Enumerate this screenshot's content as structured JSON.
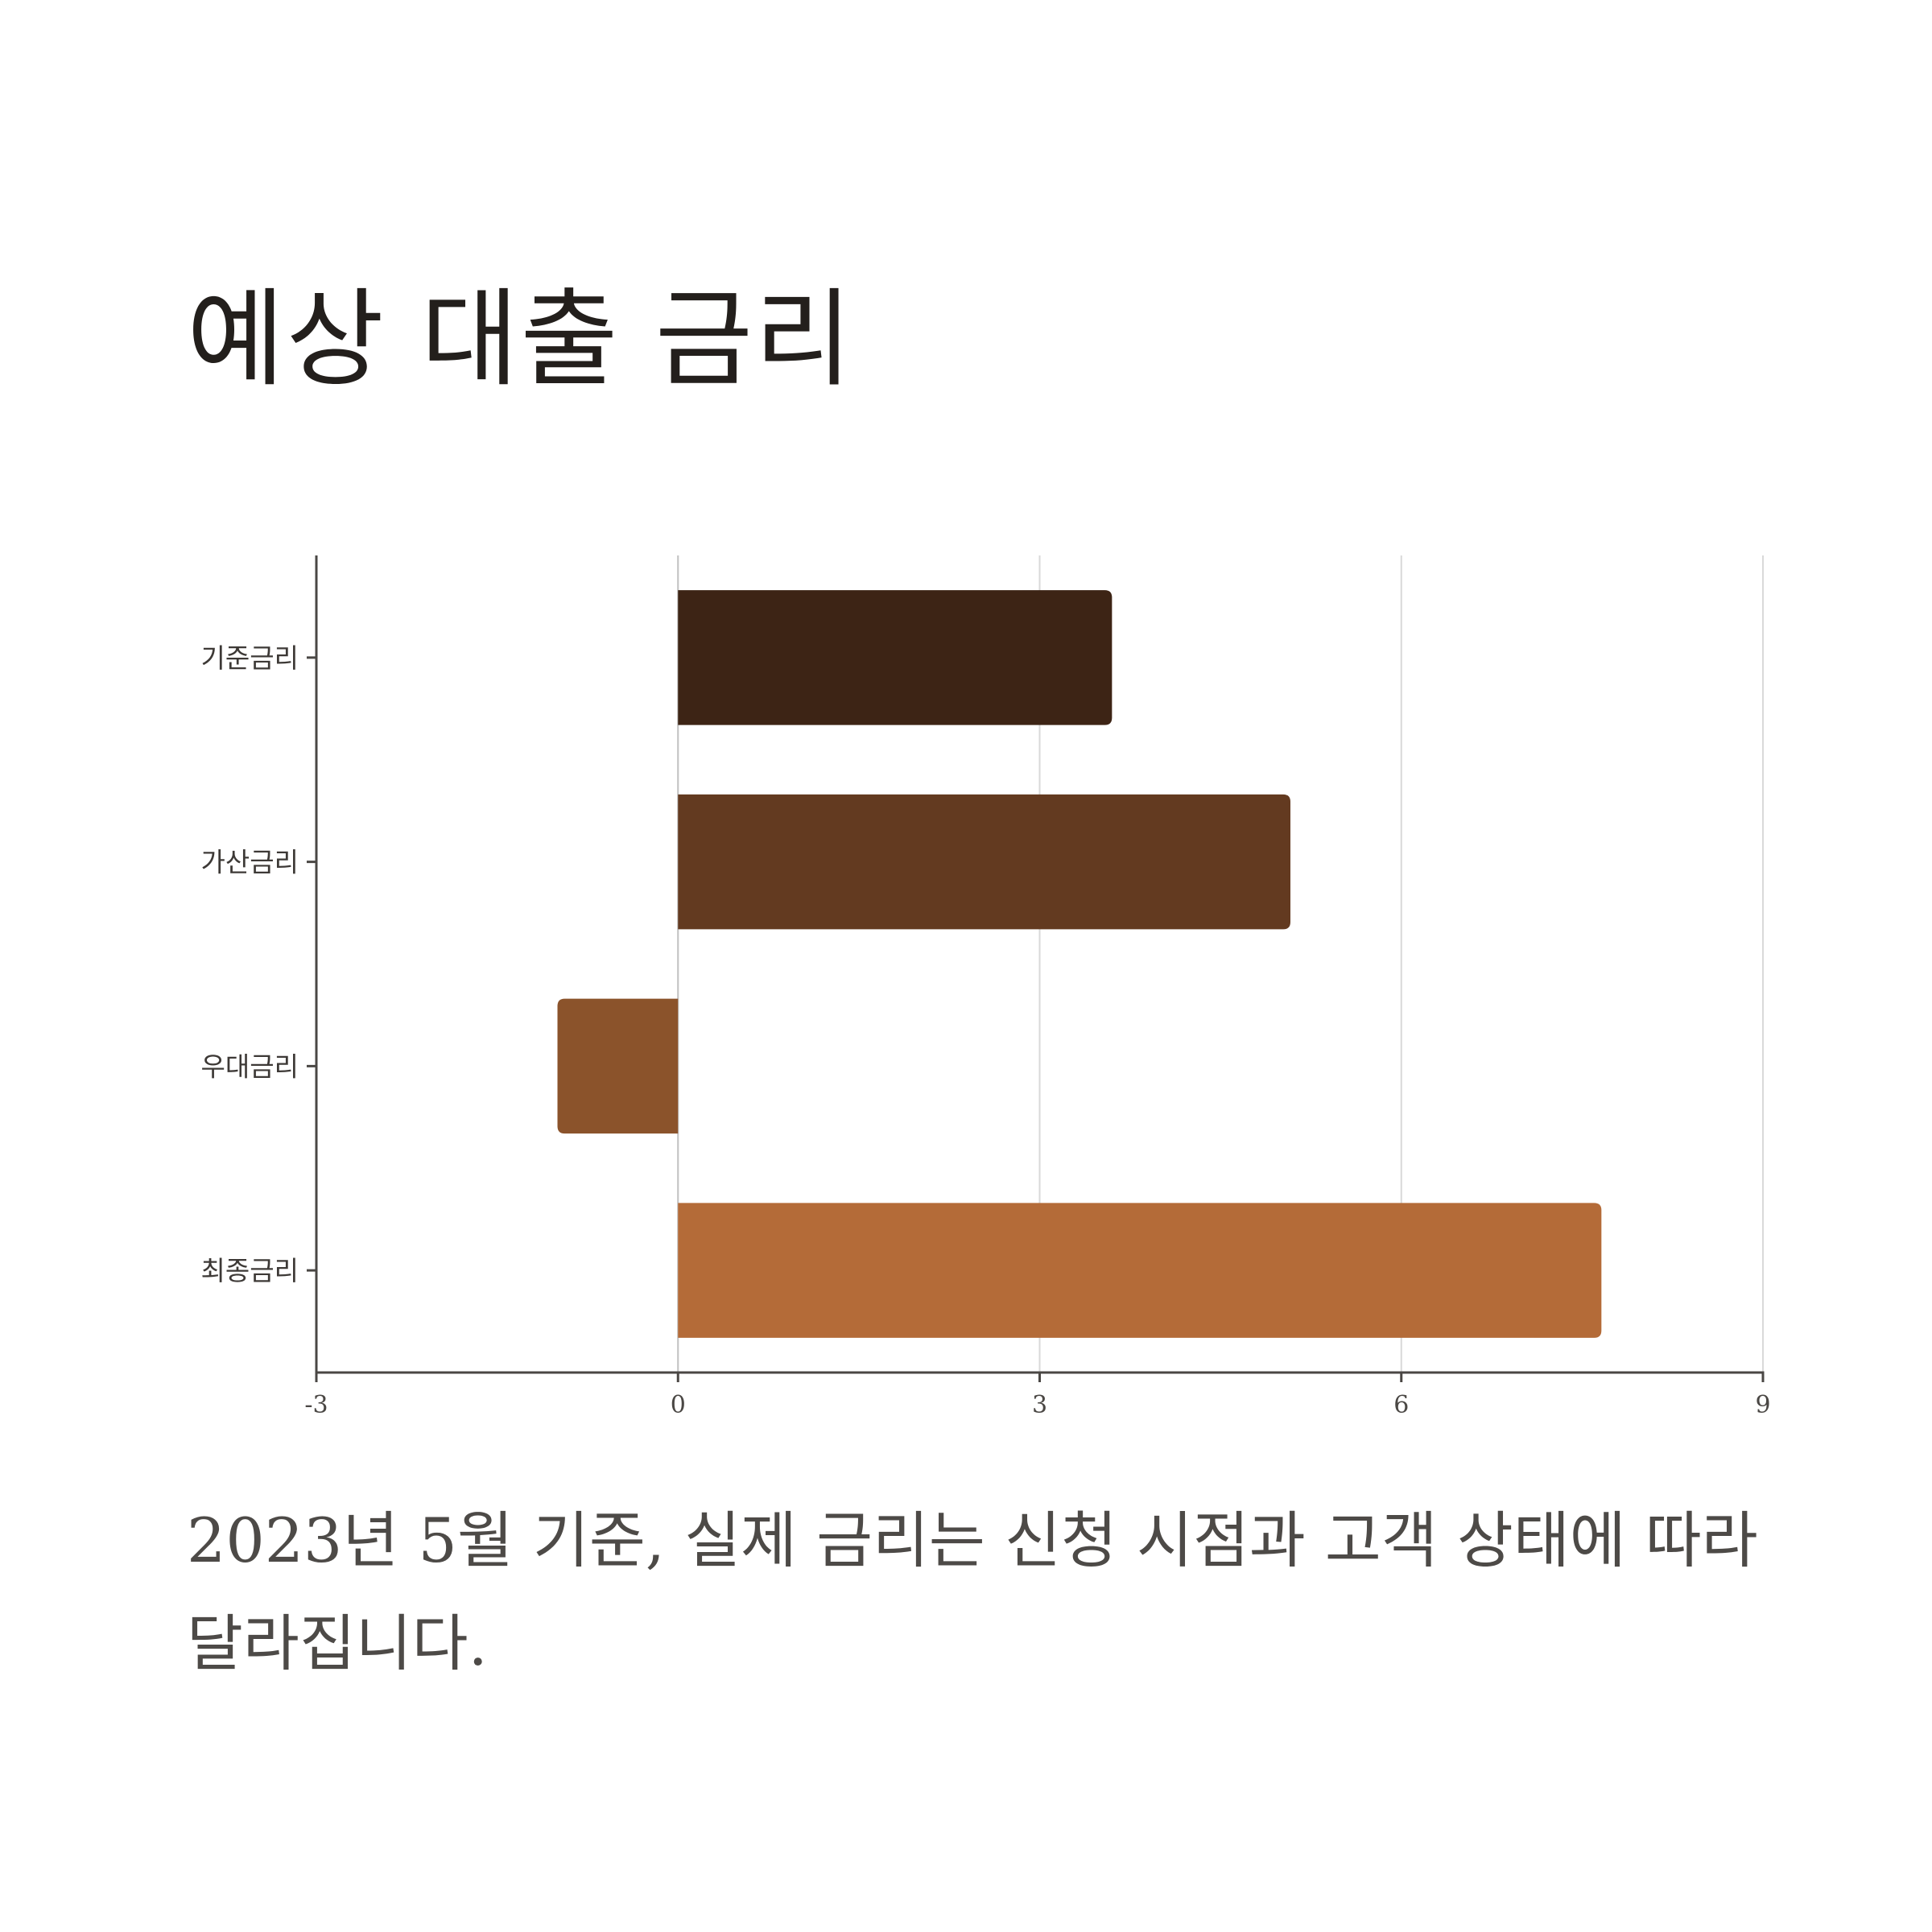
{
  "title": "예상 대출 금리",
  "caption": "2023년 5월 기준, 실제 금리는 신청 시점과 고객 상태에 따라 달라집니다.",
  "chart_data": {
    "type": "bar",
    "orientation": "horizontal",
    "title": "예상 대출 금리",
    "categories": [
      "기준금리",
      "가산금리",
      "우대금리",
      "최종금리"
    ],
    "values": [
      3.6,
      5.08,
      -1.0,
      7.66
    ],
    "colors": [
      "#3d2415",
      "#633a20",
      "#8b532b",
      "#b46b38"
    ],
    "xlim": [
      -3,
      9
    ],
    "xticks": [
      "-3",
      "0",
      "3",
      "6",
      "9"
    ],
    "grid": "vertical",
    "legend": "none"
  }
}
